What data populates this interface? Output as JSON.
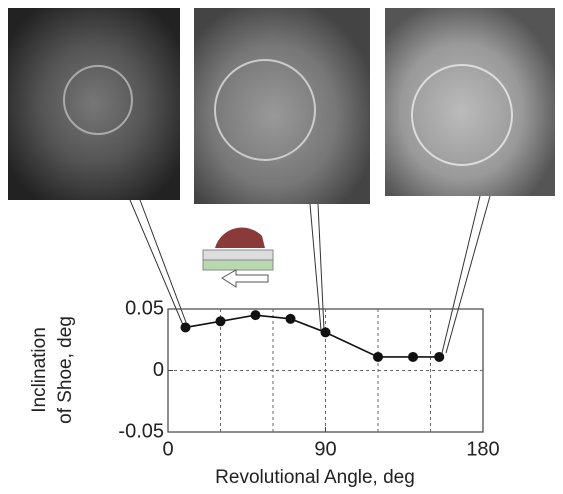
{
  "chart_data": {
    "type": "line",
    "xlabel": "Revolutional Angle,  deg",
    "ylabel": [
      "Inclination",
      "of Shoe,  deg"
    ],
    "x": [
      10,
      30,
      50,
      70,
      90,
      120,
      140,
      155
    ],
    "series": [
      {
        "color": "#111111",
        "values": [
          0.035,
          0.04,
          0.045,
          0.042,
          0.031,
          0.011,
          0.011,
          0.011
        ]
      }
    ],
    "xlim": [
      0,
      180
    ],
    "xticks": [
      0,
      90,
      180
    ],
    "ylim": [
      -0.05,
      0.05
    ],
    "yticks": [
      -0.05,
      0,
      0.05
    ],
    "xgrid": [
      30,
      60,
      90,
      120,
      150
    ],
    "ygrid": [
      0
    ]
  }
}
